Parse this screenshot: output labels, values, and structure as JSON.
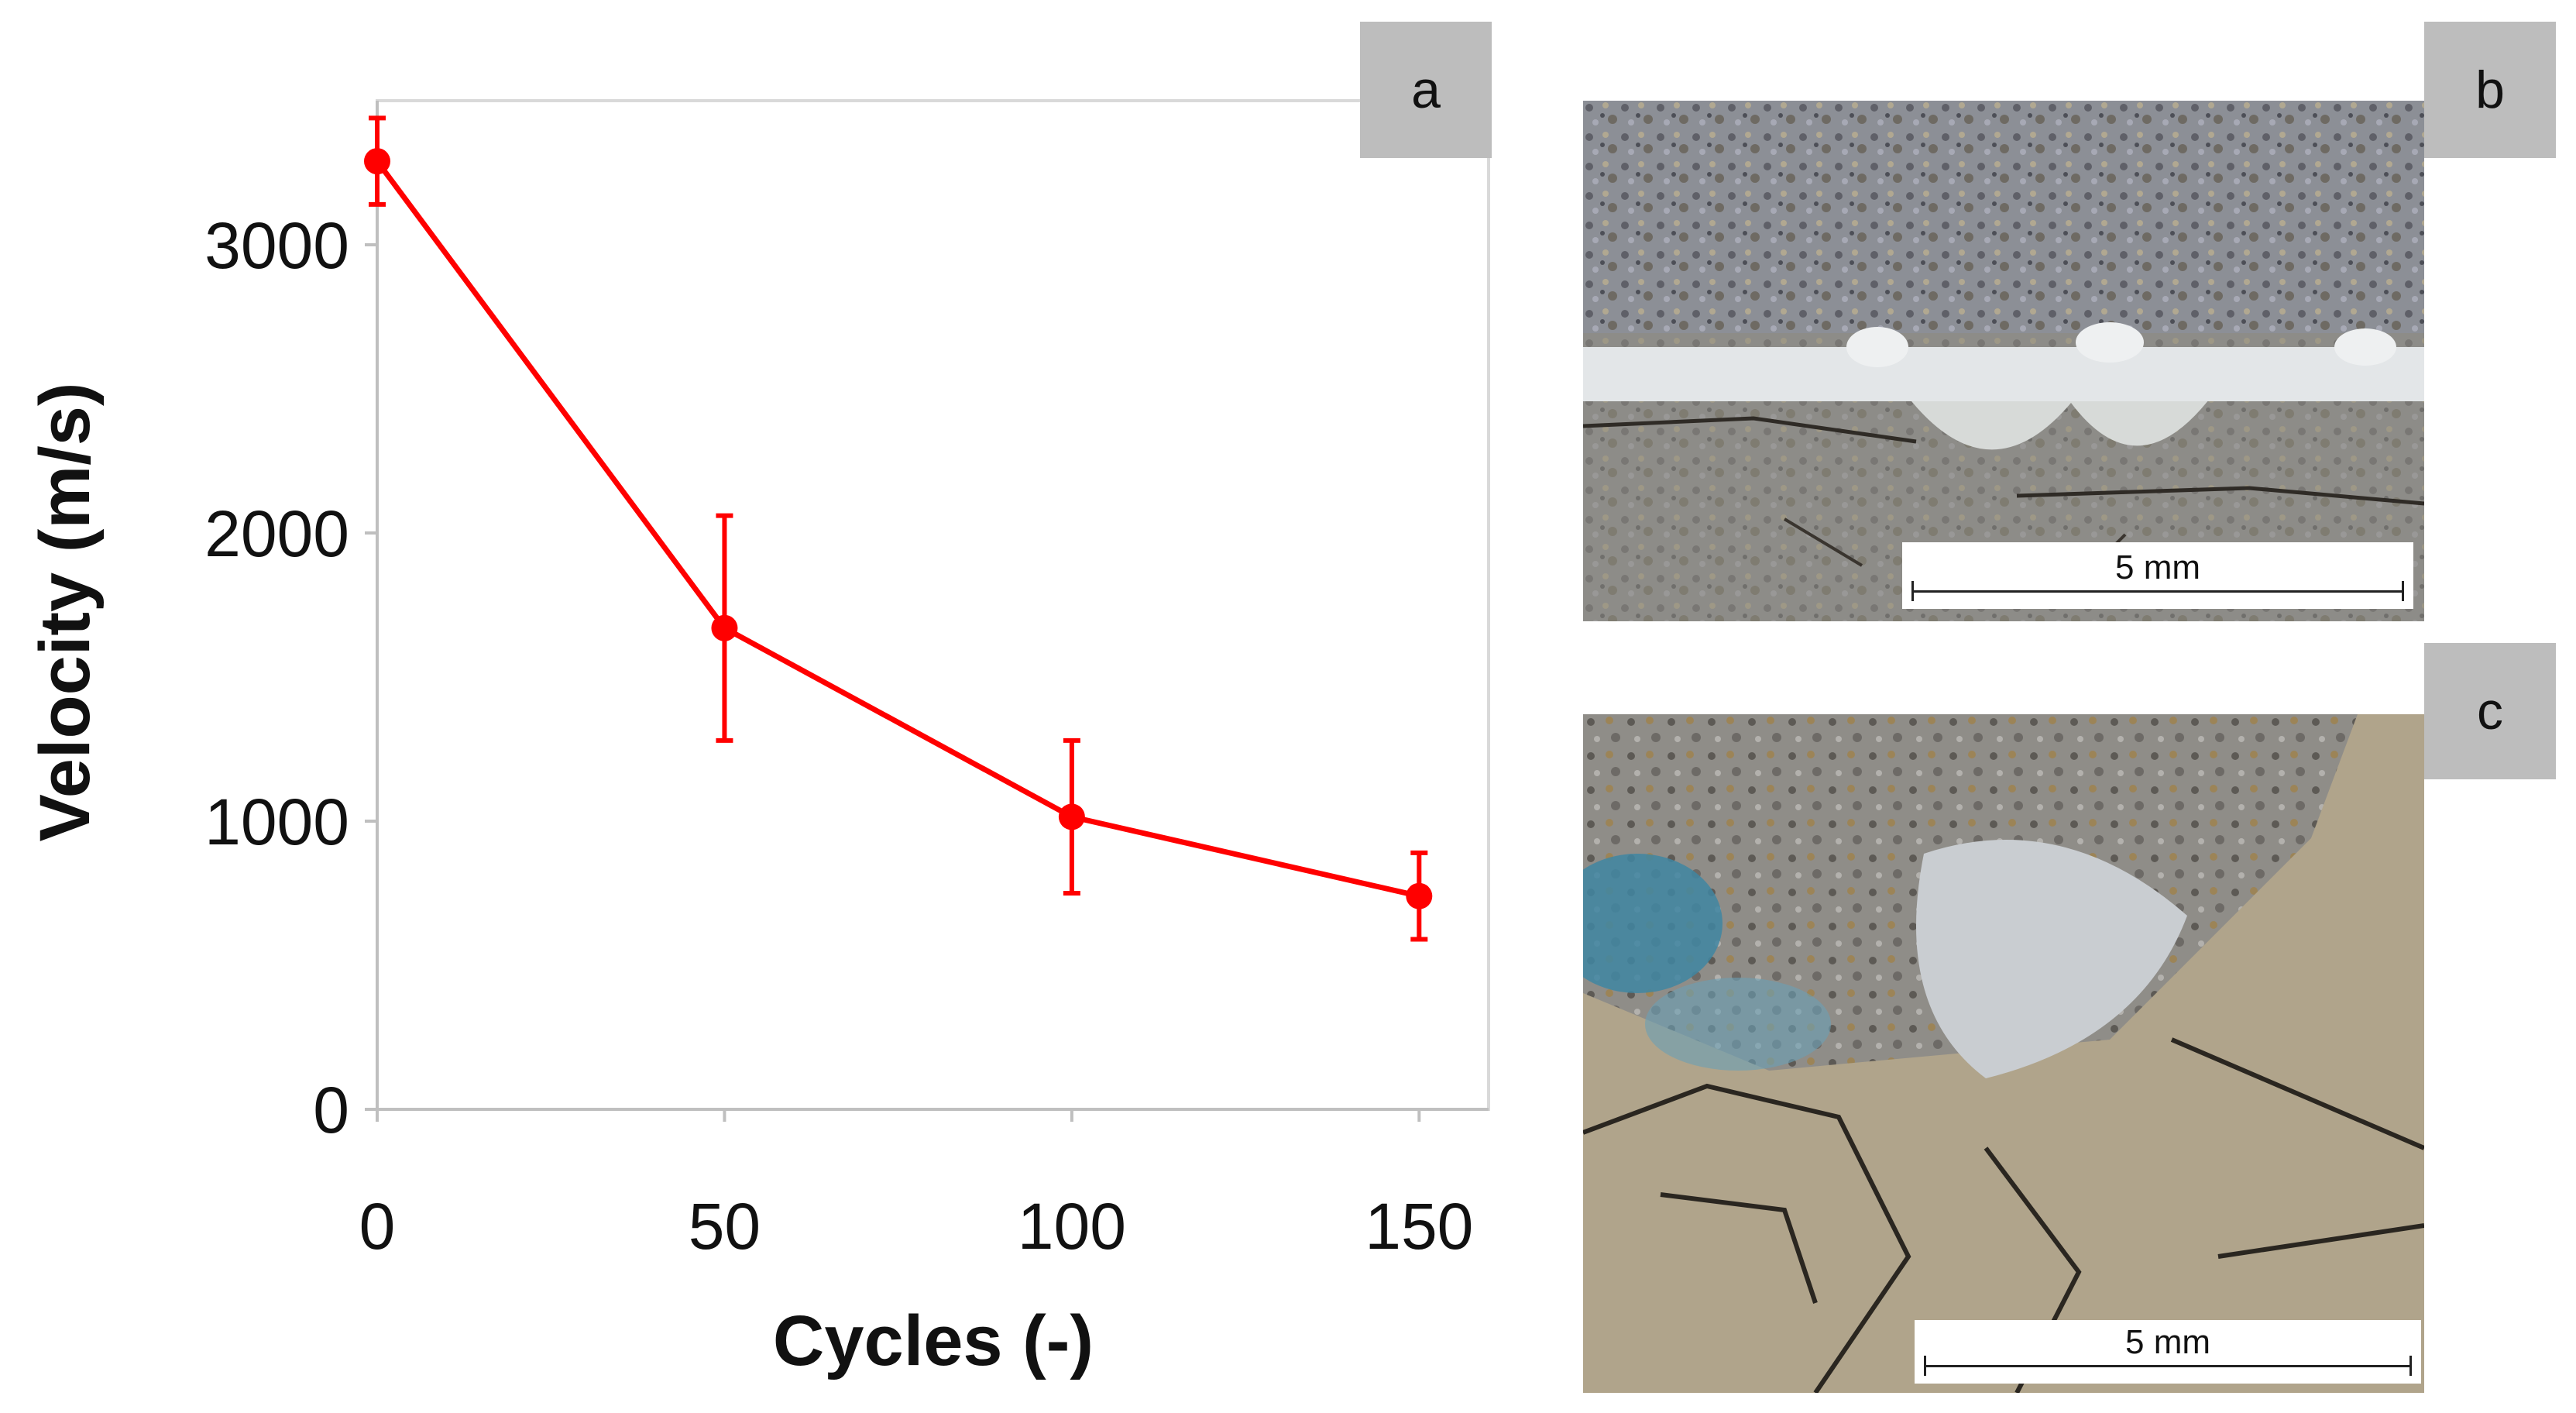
{
  "panels": {
    "a": {
      "tag": "a"
    },
    "b": {
      "tag": "b",
      "scale_label": "5 mm"
    },
    "c": {
      "tag": "c",
      "scale_label": "5 mm"
    }
  },
  "colors": {
    "series": "#ff0000",
    "axis": "#bfbfbf",
    "plot_frame": "#d9d9d9",
    "tag_bg": "#bdbdbd"
  },
  "chart_data": {
    "type": "line",
    "title": "",
    "xlabel": "Cycles (-)",
    "ylabel": "Velocity (m/s)",
    "x": [
      0,
      50,
      100,
      150
    ],
    "x_ticks": [
      "0",
      "50",
      "100",
      "150"
    ],
    "y_ticks": [
      "0",
      "1000",
      "2000",
      "3000"
    ],
    "xlim": [
      0,
      160
    ],
    "ylim": [
      0,
      3500
    ],
    "grid": false,
    "legend": "none",
    "series": [
      {
        "values": [
          3290,
          1670,
          1015,
          740
        ],
        "error": [
          150,
          390,
          265,
          150
        ]
      }
    ]
  }
}
